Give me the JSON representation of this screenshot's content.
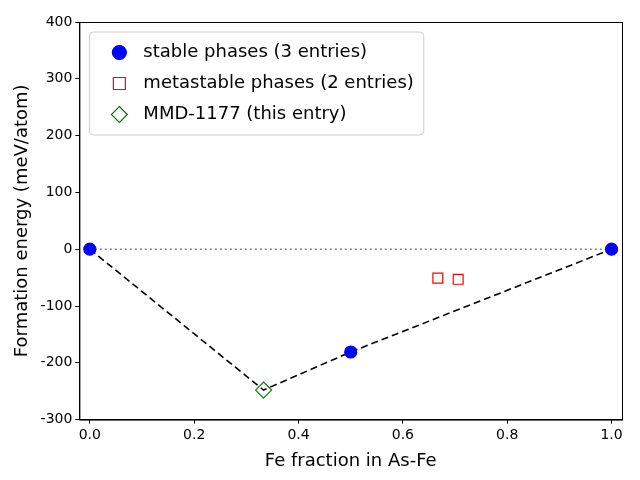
{
  "chart_data": {
    "type": "scatter",
    "x_label": "Fe fraction in As-Fe",
    "y_label": "Formation energy (meV/atom)",
    "xlim": [
      -0.02,
      1.02
    ],
    "ylim": [
      -300,
      400
    ],
    "xticks": [
      {
        "value": 0,
        "label": "0.0"
      },
      0.2,
      0.4,
      0.6,
      0.8,
      {
        "value": 1,
        "label": "1.0"
      }
    ],
    "yticks": [
      -300,
      -200,
      -100,
      0,
      100,
      200,
      300,
      400
    ],
    "grid": false,
    "legend": "upper left",
    "series": [
      {
        "name": "stable phases (3 entries)",
        "type": "scatter",
        "marker": "circle",
        "color": "#0000ff",
        "x": [
          0,
          0.5,
          1
        ],
        "values": [
          0,
          -181,
          0
        ]
      },
      {
        "name": "metastable phases (2 entries)",
        "type": "scatter",
        "marker": "open_square",
        "color": "#ff0000",
        "x": [
          0.667,
          0.706
        ],
        "values": [
          -51,
          -53
        ]
      },
      {
        "name": "MMD-1177 (this entry)",
        "type": "scatter",
        "marker": "open_diamond",
        "color": "#008000",
        "x": [
          0.333
        ],
        "values": [
          -248
        ]
      },
      {
        "type": "line",
        "line_style": "dashed",
        "color": "#000000",
        "x": [
          0,
          0.333,
          0.5,
          1
        ],
        "values": [
          0,
          -248,
          -181,
          0
        ]
      },
      {
        "type": "line",
        "line_style": "dotted",
        "color": "#808080",
        "x": [
          0,
          1
        ],
        "values": [
          0,
          0
        ]
      }
    ]
  }
}
